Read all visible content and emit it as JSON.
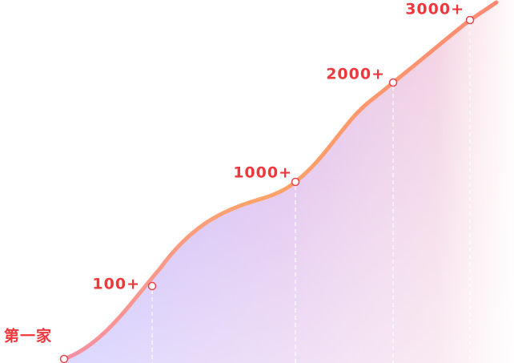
{
  "milestones": [
    {
      "label": "第一家"
    },
    {
      "label": "100+"
    },
    {
      "label": "1000+"
    },
    {
      "label": "2000+"
    },
    {
      "label": "3000+"
    }
  ]
}
